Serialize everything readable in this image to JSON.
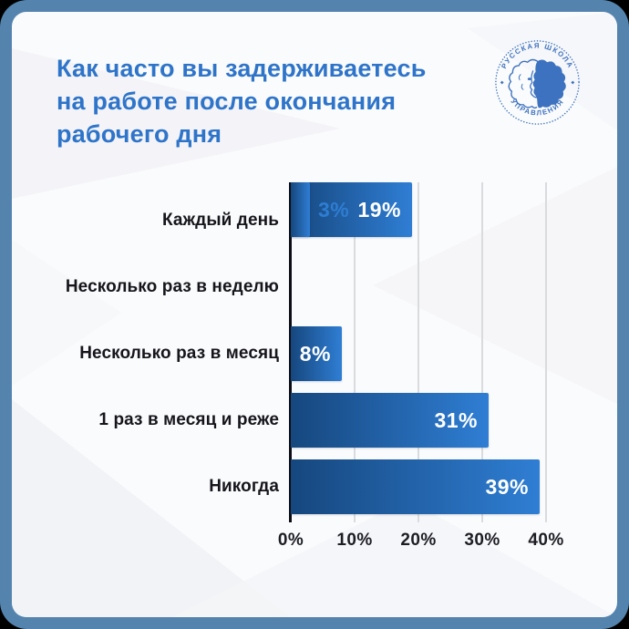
{
  "theme": {
    "corner_bg": "#000000",
    "frame": "#5484ae",
    "card": "#fafbfc",
    "accent": "#2e74c9",
    "bar_from": "#16477e",
    "bar_to": "#2f7ed4",
    "axis": "#0d0d15",
    "grid": "#d9dbde",
    "text_dark": "#15151b",
    "tick_text": "#1d1d24",
    "value_inside": "#ffffff",
    "value_outside": "#2e7dd1",
    "logo_color": "#3d72c0"
  },
  "title": {
    "lines": [
      "Как часто вы задерживаетесь",
      "на работе после окончания",
      "рабочего дня"
    ]
  },
  "logo": {
    "top_arc": "РУССКАЯ ШКОЛА",
    "bottom_arc": "УПРАВЛЕНИЯ",
    "icon": "lion-head-icon"
  },
  "chart_data": {
    "type": "bar",
    "orientation": "horizontal",
    "title": "Как часто вы задерживаетесь на работе после окончания рабочего дня",
    "categories": [
      "Каждый день",
      "Несколько раз в неделю",
      "Несколько раз в месяц",
      "1 раз в месяц и реже",
      "Никогда"
    ],
    "values": [
      8,
      31,
      39,
      19,
      3
    ],
    "labels": [
      "8%",
      "31%",
      "39%",
      "19%",
      "3%"
    ],
    "xticks": [
      "0%",
      "10%",
      "20%",
      "30%",
      "40%"
    ],
    "xtick_values": [
      0,
      10,
      20,
      30,
      40
    ],
    "xlim": [
      0,
      40
    ],
    "grid": true,
    "legend": false,
    "value_label_placement": "inside-right, outside when bar too small"
  }
}
